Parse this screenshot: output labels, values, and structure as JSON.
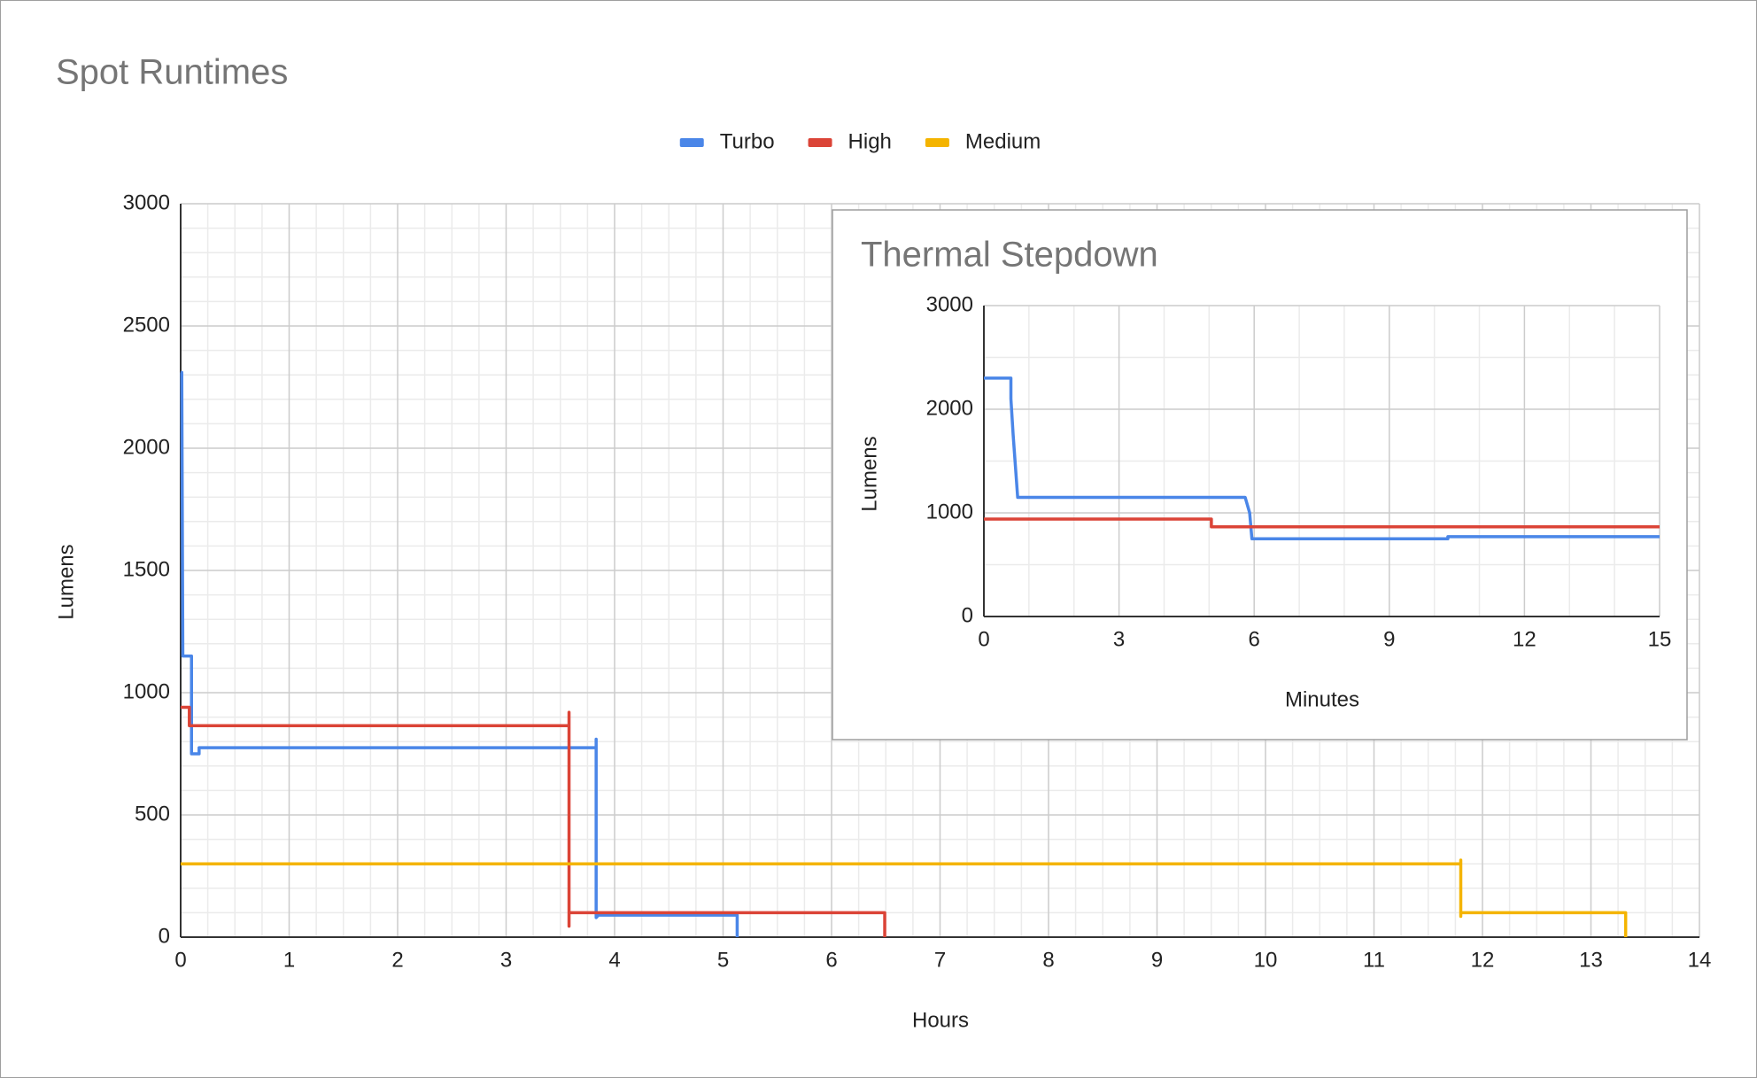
{
  "chart_data": [
    {
      "type": "line",
      "title": "Spot Runtimes",
      "x_label": "Hours",
      "y_label": "Lumens",
      "legend": "top",
      "grid": true,
      "xlim": [
        0,
        14
      ],
      "xticks": [
        0,
        1,
        2,
        3,
        4,
        5,
        6,
        7,
        8,
        9,
        10,
        11,
        12,
        13,
        14
      ],
      "ylim": [
        0,
        3000
      ],
      "yticks": [
        0,
        500,
        1000,
        1500,
        2000,
        2500,
        3000
      ],
      "series": [
        {
          "name": "Turbo",
          "color": "#4a86e8",
          "x": [
            0,
            0.01,
            0.02,
            0.1,
            0.1,
            0.17,
            0.17,
            3.83,
            3.83,
            3.83,
            3.85,
            5.13,
            5.13
          ],
          "values": [
            2310,
            2310,
            1150,
            1150,
            750,
            750,
            775,
            775,
            810,
            80,
            90,
            90,
            0
          ]
        },
        {
          "name": "High",
          "color": "#db4437",
          "x": [
            0,
            0.08,
            0.08,
            3.58,
            3.58,
            3.58,
            3.58,
            6.49,
            6.49
          ],
          "values": [
            940,
            940,
            865,
            865,
            920,
            45,
            100,
            100,
            0
          ]
        },
        {
          "name": "Medium",
          "color": "#f4b400",
          "x": [
            0,
            11.8,
            11.8,
            11.8,
            11.8,
            13.32,
            13.32
          ],
          "values": [
            300,
            300,
            315,
            85,
            100,
            100,
            0
          ]
        }
      ]
    },
    {
      "type": "line",
      "title": "Thermal Stepdown",
      "x_label": "Minutes",
      "y_label": "Lumens",
      "grid": true,
      "xlim": [
        0,
        15
      ],
      "xticks": [
        0,
        3,
        6,
        9,
        12,
        15
      ],
      "ylim": [
        0,
        3000
      ],
      "yticks": [
        0,
        1000,
        2000,
        3000
      ],
      "series": [
        {
          "color": "#4a86e8",
          "x": [
            0,
            0.6,
            0.6,
            0.65,
            0.75,
            5.8,
            5.9,
            5.95,
            10.3,
            10.3,
            15
          ],
          "values": [
            2300,
            2300,
            2100,
            1750,
            1150,
            1150,
            1000,
            750,
            750,
            770,
            770
          ]
        },
        {
          "color": "#db4437",
          "x": [
            0,
            5.05,
            5.05,
            15
          ],
          "values": [
            940,
            940,
            865,
            865
          ]
        }
      ]
    }
  ]
}
